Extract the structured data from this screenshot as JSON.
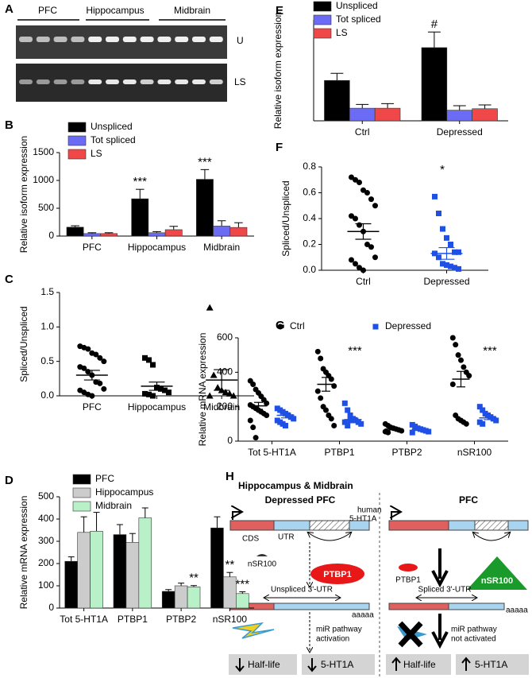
{
  "gel": {
    "letter": "A",
    "lanes": [
      "PFC",
      "Hippocampus",
      "Midbrain"
    ],
    "rows": [
      "U",
      "LS"
    ]
  },
  "chart_data": [
    {
      "letter": "B",
      "type": "bar",
      "ylabel": "Relative isoform expression",
      "categories": [
        "PFC",
        "Hippocampus",
        "Midbrain"
      ],
      "series": [
        {
          "name": "Unspliced",
          "color": "#000000",
          "values": [
            160,
            670,
            1020
          ],
          "errors": [
            25,
            170,
            175
          ]
        },
        {
          "name": "Tot spliced",
          "color": "#6b6bf5",
          "values": [
            45,
            60,
            180
          ],
          "errors": [
            15,
            20,
            95
          ]
        },
        {
          "name": "LS",
          "color": "#f04848",
          "values": [
            45,
            115,
            155
          ],
          "errors": [
            15,
            60,
            85
          ]
        }
      ],
      "ylim": [
        0,
        1500
      ],
      "yticks": [
        0,
        500,
        1000,
        1500
      ],
      "annotations": [
        "***",
        "***"
      ]
    },
    {
      "letter": "C",
      "type": "strip",
      "ylabel": "Spliced/Unspliced",
      "categories": [
        "PFC",
        "Hippocampus",
        "Midbrain"
      ],
      "series": [
        {
          "color": "#000000",
          "markers": [
            "circle",
            "square",
            "triangle"
          ],
          "values": [
            [
              0.72,
              0.7,
              0.68,
              0.62,
              0.6,
              0.55,
              0.5,
              0.42,
              0.4,
              0.35,
              0.3,
              0.2,
              0.18,
              0.1,
              0.08,
              0.05,
              0.02,
              0.0
            ],
            [
              0.55,
              0.52,
              0.45,
              0.12,
              0.1,
              0.08,
              0.05,
              0.03,
              0.02,
              0.0
            ],
            [
              1.28,
              0.3,
              0.12,
              0.08,
              0.05,
              0.03,
              0.0,
              0.0
            ]
          ],
          "means": [
            0.3,
            0.14,
            0.23
          ],
          "sems": [
            0.07,
            0.06,
            0.15
          ]
        }
      ],
      "ylim": [
        0,
        1.5
      ],
      "yticks": [
        {
          "value": 0,
          "label": "0.0"
        },
        0.5,
        {
          "value": 1,
          "label": "1.0"
        },
        1.5
      ],
      "annotations": []
    },
    {
      "letter": "D",
      "type": "bar",
      "ylabel": "Relative mRNA expression",
      "categories": [
        "Tot 5-HT1A",
        "PTBP1",
        "PTBP2",
        "nSR100"
      ],
      "series": [
        {
          "name": "PFC",
          "color": "#000000",
          "values": [
            210,
            330,
            75,
            360
          ],
          "errors": [
            20,
            45,
            8,
            50
          ]
        },
        {
          "name": "Hippocampus",
          "color": "#cccccc",
          "values": [
            340,
            295,
            100,
            140
          ],
          "errors": [
            70,
            40,
            12,
            20
          ]
        },
        {
          "name": "Midbrain",
          "color": "#b8f0c8",
          "values": [
            345,
            405,
            95,
            65
          ],
          "errors": [
            85,
            45,
            6,
            8
          ]
        }
      ],
      "ylim": [
        0,
        500
      ],
      "yticks": [
        0,
        100,
        200,
        300,
        400,
        500
      ],
      "annotations": [
        "**",
        "**",
        "***"
      ]
    },
    {
      "letter": "E",
      "type": "bar",
      "ylabel": "Relative isoform expression",
      "categories": [
        "Ctrl",
        "Depressed"
      ],
      "series": [
        {
          "name": "Unspliced",
          "color": "#000000",
          "values": [
            160,
            290
          ],
          "errors": [
            28,
            62
          ]
        },
        {
          "name": "Tot spliced",
          "color": "#6b6bf5",
          "values": [
            50,
            42
          ],
          "errors": [
            15,
            18
          ]
        },
        {
          "name": "LS",
          "color": "#f04848",
          "values": [
            50,
            48
          ],
          "errors": [
            18,
            15
          ]
        }
      ],
      "ylim": [
        0,
        400
      ],
      "annotations": [
        "#"
      ]
    },
    {
      "letter": "F",
      "type": "strip",
      "ylabel": "Spliced/Unspliced",
      "categories": [
        "Ctrl",
        "Depressed"
      ],
      "series": [
        {
          "colors": [
            "#000000",
            "#1e50e6"
          ],
          "markers": [
            "circle",
            "square"
          ],
          "values": [
            [
              0.72,
              0.7,
              0.68,
              0.62,
              0.6,
              0.55,
              0.5,
              0.42,
              0.4,
              0.35,
              0.3,
              0.2,
              0.18,
              0.1,
              0.08,
              0.05,
              0.02,
              0.0
            ],
            [
              0.57,
              0.44,
              0.32,
              0.25,
              0.2,
              0.14,
              0.14,
              0.13,
              0.1,
              0.05,
              0.04,
              0.03,
              0.02,
              0.01
            ]
          ],
          "means": [
            0.3,
            0.13
          ],
          "sems": [
            0.06,
            0.045
          ]
        }
      ],
      "ylim": [
        0,
        0.8
      ],
      "yticks": [
        {
          "value": 0,
          "label": "0.0"
        },
        0.2,
        0.4,
        0.6,
        0.8
      ],
      "annotations": [
        "*"
      ]
    },
    {
      "letter": "G",
      "type": "strip",
      "ylabel": "Relative mRNA expression",
      "categories": [
        "Tot 5-HT1A",
        "PTBP1",
        "PTBP2",
        "nSR100"
      ],
      "series": [
        {
          "name": "Ctrl",
          "color": "#000000",
          "marker": "circle",
          "values": [
            [
              350,
              330,
              300,
              280,
              260,
              240,
              220,
              210,
              200,
              190,
              180,
              170,
              160,
              150,
              120,
              80,
              20
            ],
            [
              520,
              480,
              420,
              400,
              380,
              360,
              320,
              290,
              250,
              200,
              180,
              150,
              130,
              90
            ],
            [
              100,
              90,
              80,
              75,
              70,
              65,
              60,
              55,
              50
            ],
            [
              600,
              560,
              500,
              470,
              430,
              400,
              380,
              330,
              150,
              130,
              120,
              110,
              100
            ]
          ],
          "means": [
            205,
            330,
            70,
            360
          ],
          "sems": [
            20,
            40,
            5,
            45
          ]
        },
        {
          "name": "Depressed",
          "color": "#1e50e6",
          "marker": "square",
          "values": [
            [
              190,
              180,
              170,
              160,
              150,
              140,
              130,
              120,
              110,
              100,
              90
            ],
            [
              220,
              180,
              150,
              130,
              120,
              110,
              100,
              110,
              90,
              120
            ],
            [
              95,
              85,
              75,
              70,
              65,
              60,
              55,
              50
            ],
            [
              200,
              180,
              160,
              150,
              140,
              130,
              120,
              110,
              100
            ]
          ],
          "means": [
            150,
            125,
            68,
            135
          ],
          "sems": [
            15,
            12,
            5,
            10
          ]
        }
      ],
      "ylim": [
        0,
        600
      ],
      "yticks": [
        0,
        200,
        400,
        600
      ],
      "annotations": [
        "***",
        "***"
      ]
    }
  ],
  "diagram": {
    "letter": "H",
    "title": "Hippocampus & Midbrain",
    "left": {
      "title": "Depressed PFC",
      "gene": [
        "human",
        "5-HT1A"
      ],
      "cds": "CDS",
      "utr": "UTR",
      "nsr": "nSR100",
      "ptbp": "PTBP1",
      "transcript": "Unspliced 3'-UTR",
      "tail": "aaaaa",
      "mir": [
        "miR pathway",
        "activation"
      ],
      "boxes": [
        "Half-life",
        "5-HT1A"
      ]
    },
    "right": {
      "title": "PFC",
      "ptbp": "PTBP1",
      "nsr": "nSR100",
      "transcript": "Spliced 3'-UTR",
      "tail": "aaaaa",
      "mir": [
        "miR pathway",
        "not activated"
      ],
      "boxes": [
        "Half-life",
        "5-HT1A"
      ]
    }
  }
}
